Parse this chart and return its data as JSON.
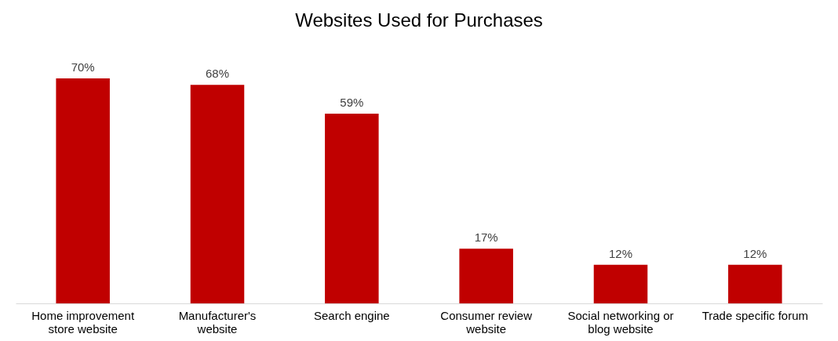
{
  "chart_data": {
    "type": "bar",
    "title": "Websites Used for Purchases",
    "categories": [
      "Home improvement store website",
      "Manufacturer's website",
      "Search engine",
      "Consumer review website",
      "Social networking or blog website",
      "Trade specific forum"
    ],
    "values": [
      70,
      68,
      59,
      17,
      12,
      12
    ],
    "color": "#c00000",
    "value_labels": [
      "70%",
      "68%",
      "59%",
      "17%",
      "12%",
      "12%"
    ]
  }
}
